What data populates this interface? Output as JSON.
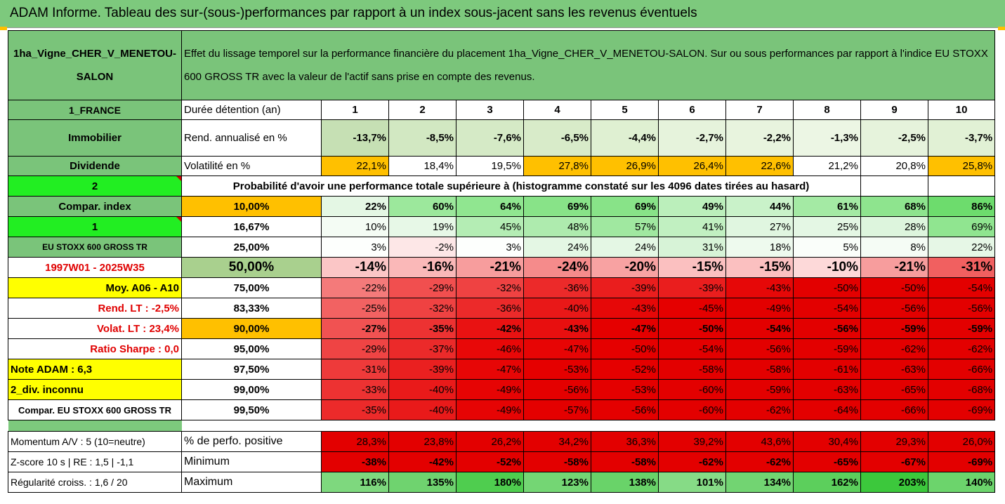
{
  "banner": "ADAM Informe. Tableau des sur-(sous-)performances par rapport à un index sous-jacent sans les revenus éventuels",
  "asset_name": "1ha_Vigne_CHER_V_MENETOU-SALON",
  "description": "Effet du lissage temporel sur la performance financière du placement 1ha_Vigne_CHER_V_MENETOU-SALON. Sur ou sous performances par rapport à l'indice EU STOXX 600 GROSS TR avec la valeur de l'actif sans prise en compte des revenus.",
  "left": {
    "country": "1_FRANCE",
    "category": "Immobilier",
    "dividend": "Dividende",
    "code2": "2",
    "compar_index": "Compar. index",
    "code1": "1",
    "index_name": "EU STOXX 600 GROSS TR",
    "period": "1997W01 - 2025W35",
    "moy": "Moy. A06 - A10",
    "rend_lt": "Rend. LT :   -2,5%",
    "volat_lt": "Volat. LT :   23,4%",
    "sharpe": "Ratio Sharpe :    0,0",
    "note": "Note ADAM : 6,3",
    "div": "2_div. inconnu",
    "compar": "Compar. EU STOXX 600 GROSS TR",
    "momentum": "Momentum A/V : 5 (10=neutre)",
    "zscore": "Z-score 10 s  |  RE : 1,5  |  -1,1",
    "regularite": "Régularité croiss. : 1,6 / 20"
  },
  "header": {
    "label": "Durée détention (an)",
    "years": [
      "1",
      "2",
      "3",
      "4",
      "5",
      "6",
      "7",
      "8",
      "9",
      "10"
    ]
  },
  "rend": {
    "label": "Rend. annualisé en %",
    "values": [
      "-13,7%",
      "-8,5%",
      "-7,6%",
      "-6,5%",
      "-4,4%",
      "-2,7%",
      "-2,2%",
      "-1,3%",
      "-2,5%",
      "-3,7%"
    ]
  },
  "vol": {
    "label": "Volatilité en %",
    "values": [
      "22,1%",
      "18,4%",
      "19,5%",
      "27,8%",
      "26,9%",
      "26,4%",
      "22,6%",
      "21,2%",
      "20,8%",
      "25,8%"
    ]
  },
  "prob_title": "Probabilité d'avoir une performance totale supérieure à (histogramme constaté sur les 4096 dates tirées au hasard)",
  "pct_rows": [
    {
      "pct": "10,00%",
      "values": [
        "22%",
        "60%",
        "64%",
        "69%",
        "69%",
        "49%",
        "44%",
        "61%",
        "68%",
        "86%"
      ]
    },
    {
      "pct": "16,67%",
      "values": [
        "10%",
        "19%",
        "45%",
        "48%",
        "57%",
        "41%",
        "27%",
        "25%",
        "28%",
        "69%"
      ]
    },
    {
      "pct": "25,00%",
      "values": [
        "3%",
        "-2%",
        "3%",
        "24%",
        "24%",
        "31%",
        "18%",
        "5%",
        "8%",
        "22%"
      ]
    },
    {
      "pct": "50,00%",
      "values": [
        "-14%",
        "-16%",
        "-21%",
        "-24%",
        "-20%",
        "-15%",
        "-15%",
        "-10%",
        "-21%",
        "-31%"
      ]
    },
    {
      "pct": "75,00%",
      "values": [
        "-22%",
        "-29%",
        "-32%",
        "-36%",
        "-39%",
        "-39%",
        "-43%",
        "-50%",
        "-50%",
        "-54%"
      ]
    },
    {
      "pct": "83,33%",
      "values": [
        "-25%",
        "-32%",
        "-36%",
        "-40%",
        "-43%",
        "-45%",
        "-49%",
        "-54%",
        "-56%",
        "-56%"
      ]
    },
    {
      "pct": "90,00%",
      "values": [
        "-27%",
        "-35%",
        "-42%",
        "-43%",
        "-47%",
        "-50%",
        "-54%",
        "-56%",
        "-59%",
        "-59%"
      ]
    },
    {
      "pct": "95,00%",
      "values": [
        "-29%",
        "-37%",
        "-46%",
        "-47%",
        "-50%",
        "-54%",
        "-56%",
        "-59%",
        "-62%",
        "-62%"
      ]
    },
    {
      "pct": "97,50%",
      "values": [
        "-31%",
        "-39%",
        "-47%",
        "-53%",
        "-52%",
        "-58%",
        "-58%",
        "-61%",
        "-63%",
        "-66%"
      ]
    },
    {
      "pct": "99,00%",
      "values": [
        "-33%",
        "-40%",
        "-49%",
        "-56%",
        "-53%",
        "-60%",
        "-59%",
        "-63%",
        "-65%",
        "-68%"
      ]
    },
    {
      "pct": "99,50%",
      "values": [
        "-35%",
        "-40%",
        "-49%",
        "-57%",
        "-56%",
        "-60%",
        "-62%",
        "-64%",
        "-66%",
        "-69%"
      ]
    }
  ],
  "positive": {
    "label": "% de perfo. positive",
    "values": [
      "28,3%",
      "23,8%",
      "26,2%",
      "34,2%",
      "36,3%",
      "39,2%",
      "43,6%",
      "30,4%",
      "29,3%",
      "26,0%"
    ]
  },
  "minimum": {
    "label": "Minimum",
    "values": [
      "-38%",
      "-42%",
      "-52%",
      "-58%",
      "-58%",
      "-62%",
      "-62%",
      "-65%",
      "-67%",
      "-69%"
    ]
  },
  "maximum": {
    "label": "Maximum",
    "values": [
      "116%",
      "135%",
      "180%",
      "123%",
      "138%",
      "101%",
      "134%",
      "162%",
      "203%",
      "140%"
    ]
  },
  "colors": {
    "rend": [
      "#c6e0b4",
      "#d2e8c2",
      "#d5eac6",
      "#d8ebc9",
      "#dff0d2",
      "#e6f3dc",
      "#e8f4de",
      "#ecf6e4",
      "#e6f3dc",
      "#e1f1d5"
    ],
    "vol": [
      "#ffc000",
      "#ffffff",
      "#ffffff",
      "#ffc000",
      "#ffc000",
      "#ffc000",
      "#ffc000",
      "#ffffff",
      "#ffffff",
      "#ffc000"
    ],
    "pct": [
      [
        "#e4f7e4",
        "#9ce89c",
        "#90e690",
        "#88e388",
        "#88e388",
        "#bbefbb",
        "#c9f2c9",
        "#a4eaa4",
        "#8ee48e",
        "#6ddc6d"
      ],
      [
        "#f4fcf4",
        "#e7f8e7",
        "#b4edb4",
        "#aeebae",
        "#a0e8a0",
        "#c1f0c1",
        "#e0f6e0",
        "#e4f7e4",
        "#ddf5dd",
        "#90e590"
      ],
      [
        "#fdfffd",
        "#fde7e7",
        "#fdfffd",
        "#e4f7e4",
        "#e4f7e4",
        "#d7f3d7",
        "#eefaee",
        "#fafefa",
        "#f5fcf5",
        "#e6f7e6"
      ],
      [
        "#fbc6c6",
        "#fab8b8",
        "#f79d9d",
        "#f58b8b",
        "#f8a2a2",
        "#fbc0c0",
        "#fbc0c0",
        "#fdd9d9",
        "#f79d9d",
        "#f16060"
      ],
      [
        "#f47a7a",
        "#f14f4f",
        "#ef4242",
        "#ec2a2a",
        "#ea1e1e",
        "#ea1e1e",
        "#e60808",
        "#e30000",
        "#e30000",
        "#e30000"
      ],
      [
        "#f26262",
        "#ef4242",
        "#ec2a2a",
        "#e91818",
        "#e60808",
        "#e50000",
        "#e30000",
        "#e30000",
        "#e30000",
        "#e30000"
      ],
      [
        "#f15252",
        "#ed3232",
        "#e91212",
        "#e80f0f",
        "#e50000",
        "#e30000",
        "#e30000",
        "#e30000",
        "#e30000",
        "#e30000"
      ],
      [
        "#ef4444",
        "#eb2a2a",
        "#e80808",
        "#e70505",
        "#e50000",
        "#e30000",
        "#e30000",
        "#e30000",
        "#e30000",
        "#e30000"
      ],
      [
        "#ee3a3a",
        "#ea2020",
        "#e70606",
        "#e50000",
        "#e50000",
        "#e30000",
        "#e30000",
        "#e30000",
        "#e30000",
        "#e30000"
      ],
      [
        "#ed3232",
        "#e91a1a",
        "#e60404",
        "#e40000",
        "#e40000",
        "#e30000",
        "#e30000",
        "#e30000",
        "#e30000",
        "#e30000"
      ],
      [
        "#ec2a2a",
        "#e91a1a",
        "#e60404",
        "#e40000",
        "#e40000",
        "#e30000",
        "#e30000",
        "#e30000",
        "#e30000",
        "#e30000"
      ]
    ],
    "positive": [
      "#e30000",
      "#e30000",
      "#e30000",
      "#e30000",
      "#e30000",
      "#e30000",
      "#e30000",
      "#e30000",
      "#e30000",
      "#e30000"
    ],
    "minimum": [
      "#e30000",
      "#e30000",
      "#e30000",
      "#e30000",
      "#e30000",
      "#e30000",
      "#e30000",
      "#e30000",
      "#e30000",
      "#e30000"
    ],
    "maximum": [
      "#7ed87e",
      "#6fd36f",
      "#4fcd4f",
      "#74d674",
      "#69d369",
      "#86db86",
      "#72d472",
      "#5ccf5c",
      "#3cc83c",
      "#6cd46c"
    ]
  }
}
